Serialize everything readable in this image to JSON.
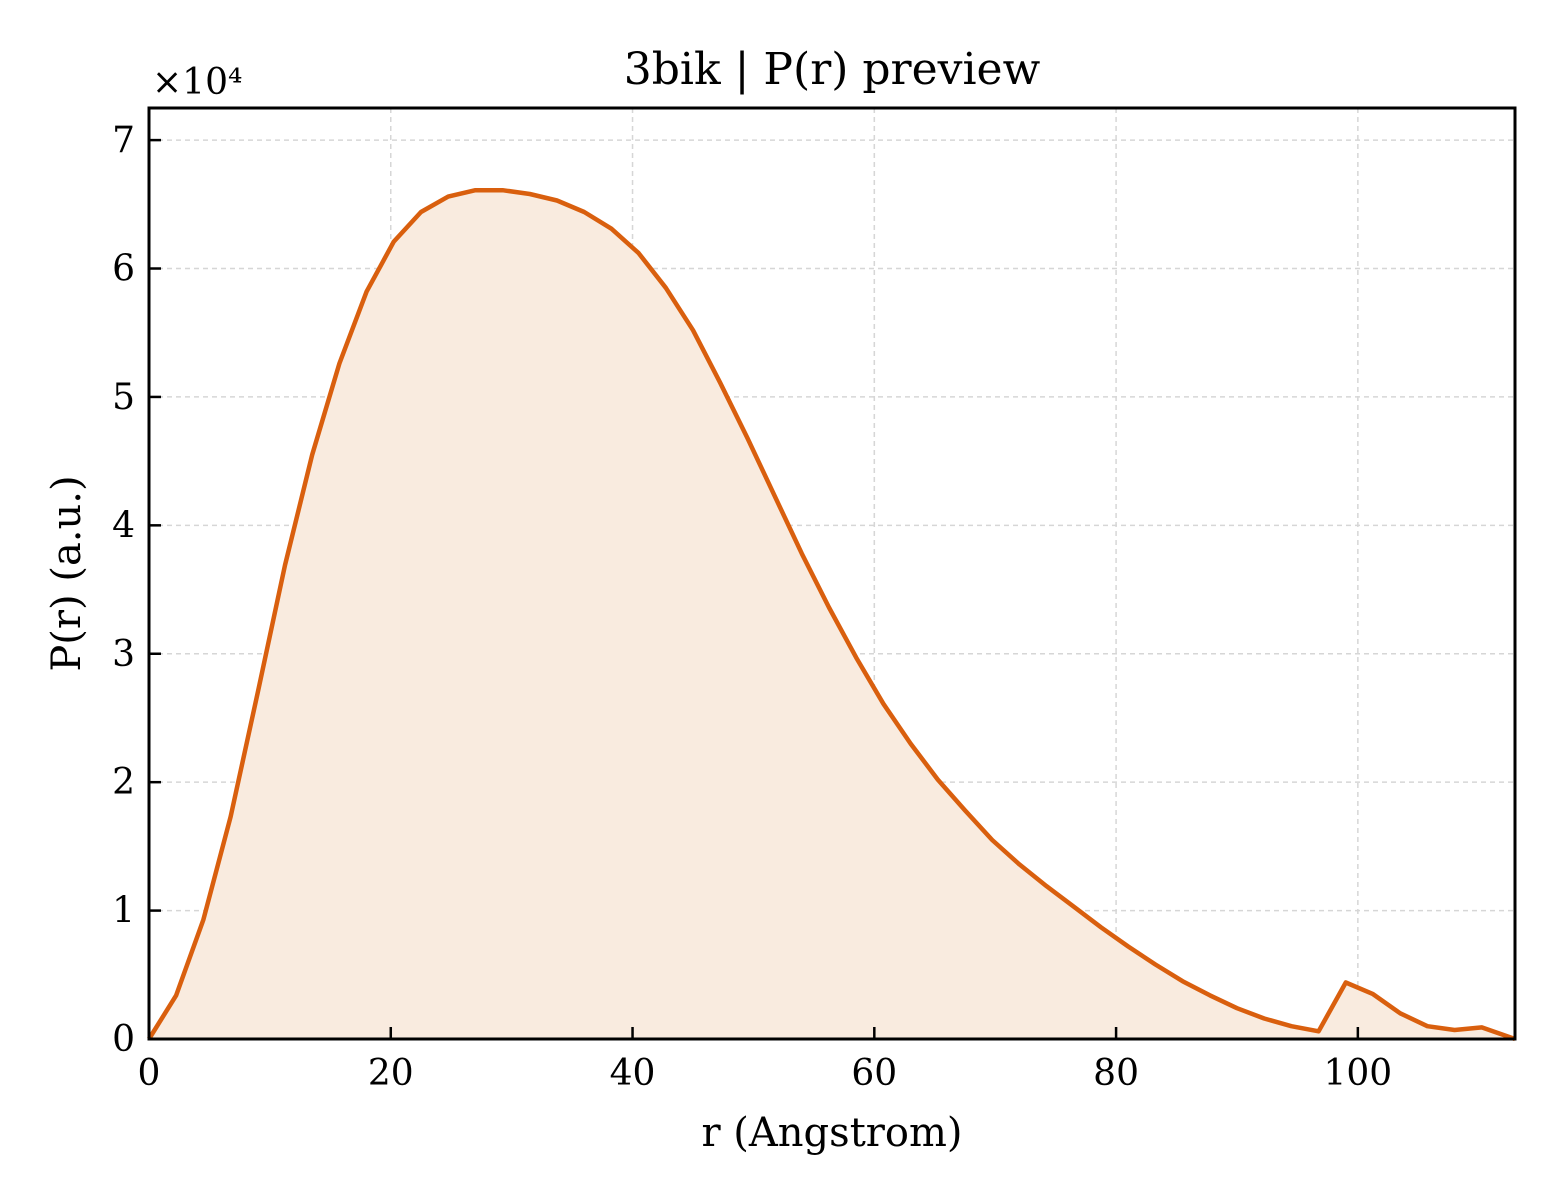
{
  "chart_data": {
    "type": "area",
    "title": "3bik | P(r) preview",
    "xlabel": "r (Angstrom)",
    "ylabel": "P(r) (a.u.)",
    "y_multiplier_label": "×10⁴",
    "xlim": [
      0,
      113
    ],
    "ylim": [
      0,
      72500
    ],
    "xticks": [
      0,
      20,
      40,
      60,
      80,
      100
    ],
    "yticks": [
      0,
      10000,
      20000,
      30000,
      40000,
      50000,
      60000,
      70000
    ],
    "ytick_labels": [
      "0",
      "1",
      "2",
      "3",
      "4",
      "5",
      "6",
      "7"
    ],
    "grid": true,
    "line_color": "#d95f0e",
    "fill_color": "#f9ebdf",
    "series": [
      {
        "x": [
          0,
          2.25,
          4.5,
          6.75,
          9.0,
          11.25,
          13.5,
          15.75,
          18.0,
          20.25,
          22.5,
          24.75,
          27.0,
          29.25,
          31.5,
          33.75,
          36.0,
          38.25,
          40.5,
          42.75,
          45.0,
          47.25,
          49.5,
          51.75,
          54.0,
          56.25,
          58.5,
          60.75,
          63.0,
          65.25,
          67.5,
          69.75,
          72.0,
          74.25,
          76.5,
          78.75,
          81.0,
          83.25,
          85.5,
          87.75,
          90.0,
          92.25,
          94.5,
          96.75,
          99.0,
          101.25,
          103.5,
          105.75,
          108.0,
          110.25,
          113.0
        ],
        "y": [
          0,
          3400,
          9300,
          17300,
          27000,
          36900,
          45500,
          52600,
          58200,
          62100,
          64400,
          65600,
          66100,
          66100,
          65800,
          65300,
          64400,
          63100,
          61200,
          58500,
          55200,
          51100,
          46800,
          42300,
          37800,
          33600,
          29700,
          26100,
          23000,
          20200,
          17800,
          15500,
          13600,
          11900,
          10300,
          8700,
          7200,
          5800,
          4500,
          3400,
          2400,
          1600,
          1000,
          600,
          4400,
          3500,
          2000,
          1000,
          700,
          900,
          0
        ]
      }
    ]
  }
}
